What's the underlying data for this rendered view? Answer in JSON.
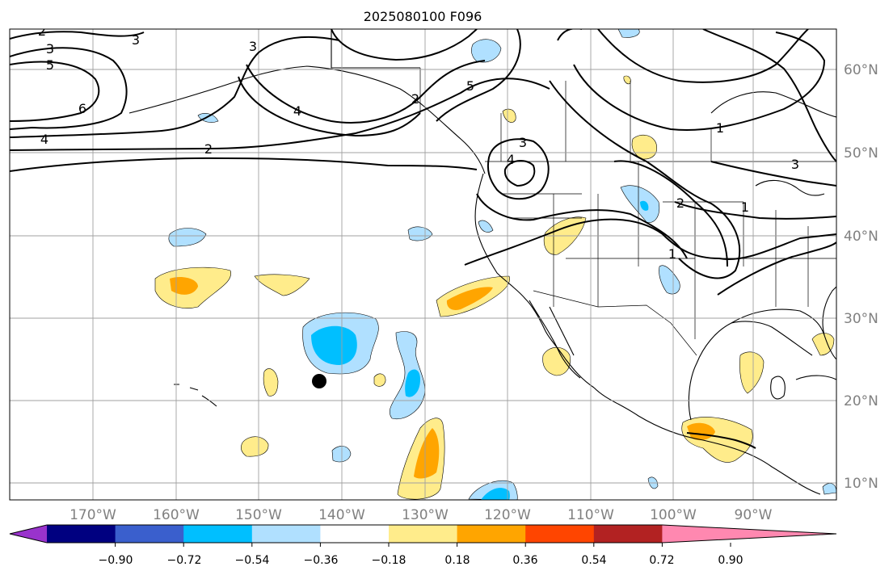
{
  "title": "2025080100 F096",
  "lon_labels": [
    "170°W",
    "160°W",
    "150°W",
    "140°W",
    "130°W",
    "120°W",
    "110°W",
    "100°W",
    "90°W"
  ],
  "lat_labels": [
    "60°N",
    "50°N",
    "40°N",
    "30°N",
    "20°N",
    "10°N"
  ],
  "contour_labels": [
    "2",
    "3",
    "5",
    "6",
    "4",
    "3",
    "5",
    "4",
    "2",
    "3",
    "3",
    "4",
    "1",
    "2",
    "1",
    "1",
    "3",
    "2"
  ],
  "colorbar": {
    "tick_labels": [
      "−0.90",
      "−0.72",
      "−0.54",
      "−0.36",
      "−0.18",
      "0.18",
      "0.36",
      "0.54",
      "0.72",
      "0.90"
    ],
    "colors": [
      "#9933cc",
      "#000080",
      "#3a5fcd",
      "#00bfff",
      "#b0e0ff",
      "#ffffff",
      "#ffec8b",
      "#ffa500",
      "#ff4500",
      "#b22222",
      "#ff88b0"
    ]
  },
  "colors": {
    "ocean": "#ffffff",
    "grid": "#a0a0a0",
    "contour": "#000000",
    "positive_light": "#ffec8b",
    "positive_mid": "#ffa500",
    "negative_light": "#b0e0ff",
    "negative_mid": "#00bfff",
    "marker": "#000000"
  }
}
